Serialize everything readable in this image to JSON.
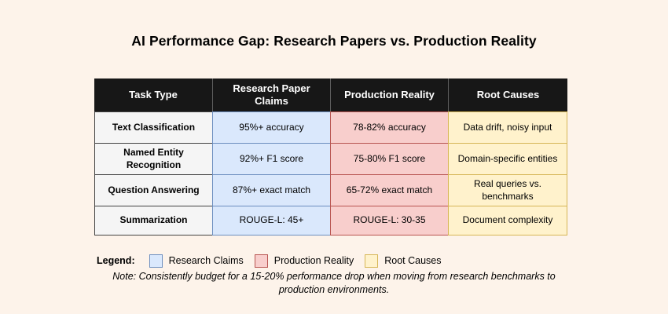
{
  "page": {
    "background": "#FDF3EA",
    "title": "AI Performance Gap: Research Papers vs. Production Reality"
  },
  "table": {
    "columns": [
      "Task Type",
      "Research Paper Claims",
      "Production Reality",
      "Root Causes"
    ],
    "rows": [
      {
        "task": "Text Classification",
        "research": "95%+ accuracy",
        "production": "78-82% accuracy",
        "root": "Data drift, noisy input"
      },
      {
        "task": "Named Entity Recognition",
        "research": "92%+ F1 score",
        "production": "75-80% F1 score",
        "root": "Domain-specific entities"
      },
      {
        "task": "Question Answering",
        "research": "87%+ exact match",
        "production": "65-72% exact match",
        "root": "Real queries vs. benchmarks"
      },
      {
        "task": "Summarization",
        "research": "ROUGE-L: 45+",
        "production": "ROUGE-L: 30-35",
        "root": "Document complexity"
      }
    ]
  },
  "legend": {
    "label": "Legend:",
    "items": [
      {
        "label": "Research Claims",
        "fill": "#DAE8FC",
        "stroke": "#6C8EBF"
      },
      {
        "label": "Production Reality",
        "fill": "#F8CECC",
        "stroke": "#B85450"
      },
      {
        "label": "Root Causes",
        "fill": "#FFF2CC",
        "stroke": "#D6B656"
      }
    ]
  },
  "note": "Note: Consistently budget for a 15-20% performance drop when moving from research benchmarks to production environments.",
  "colors": {
    "header_bg": "#171717",
    "header_text": "#FFFFFF",
    "task_fill": "#F5F5F5",
    "task_stroke": "#424242",
    "research_fill": "#DAE8FC",
    "research_stroke": "#6C8EBF",
    "production_fill": "#F8CECC",
    "production_stroke": "#B85450",
    "root_fill": "#FFF2CC",
    "root_stroke": "#D6B656"
  }
}
